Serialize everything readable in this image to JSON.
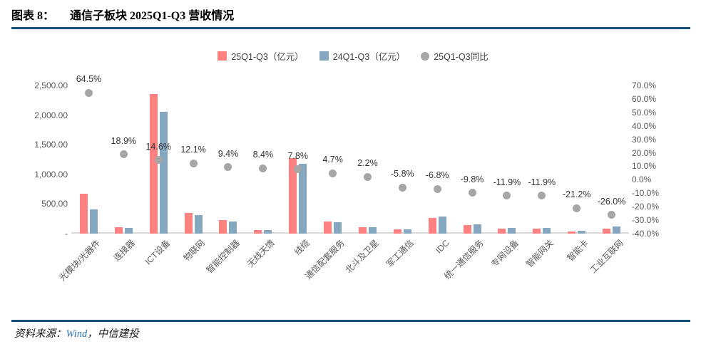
{
  "header": {
    "chart_label": "图表 8：",
    "title": "通信子板块 2025Q1-Q3 营收情况"
  },
  "footer": {
    "source_prefix": "资料来源：",
    "source_wind": "Wind",
    "source_rest": "，中信建投"
  },
  "colors": {
    "bar_2025": "#FD8181",
    "bar_2024": "#85A7C0",
    "dot": "#A6A6A6",
    "rule": "#134F7D",
    "axis_text": "#595959",
    "baseline": "#D9D9D9",
    "wind_blue": "#2E75B6",
    "data_label": "#333333"
  },
  "legend": [
    {
      "label": "25Q1-Q3（亿元）",
      "marker": "square",
      "color_key": "bar_2025"
    },
    {
      "label": "24Q1-Q3（亿元）",
      "marker": "square",
      "color_key": "bar_2024"
    },
    {
      "label": "25Q1-Q3同比",
      "marker": "circle",
      "color_key": "dot"
    }
  ],
  "chart_data": {
    "type": "bar",
    "subtype": "grouped-bars-with-scatter-overlay",
    "title": "通信子板块 2025Q1-Q3 营收情况",
    "grid": false,
    "legend_position": "top-center",
    "categories": [
      "光模块/光器件",
      "连接器",
      "ICT设备",
      "物联网",
      "智能控制器",
      "无线天馈",
      "线缆",
      "通信配套服务",
      "北斗及卫星",
      "军工通信",
      "IDC",
      "统一通信服务",
      "专网设备",
      "智能网关",
      "智能卡",
      "工业互联网"
    ],
    "series": [
      {
        "name": "25Q1-Q3（亿元）",
        "type": "bar",
        "axis": "left",
        "values": [
          670,
          108,
          2350,
          350,
          230,
          60,
          1270,
          200,
          108,
          73,
          265,
          145,
          85,
          88,
          37,
          90
        ]
      },
      {
        "name": "24Q1-Q3（亿元）",
        "type": "bar",
        "axis": "left",
        "values": [
          407,
          91,
          2050,
          312,
          210,
          55,
          1178,
          191,
          106,
          78,
          284,
          161,
          97,
          100,
          47,
          122
        ]
      },
      {
        "name": "25Q1-Q3同比",
        "type": "scatter",
        "axis": "right",
        "values": [
          64.5,
          18.9,
          14.6,
          12.1,
          9.4,
          8.4,
          7.8,
          4.7,
          2.2,
          -5.8,
          -6.8,
          -9.8,
          -11.9,
          -11.9,
          -21.2,
          -26.0
        ],
        "labels": [
          "64.5%",
          "18.9%",
          "14.6%",
          "12.1%",
          "9.4%",
          "8.4%",
          "7.8%",
          "4.7%",
          "2.2%",
          "-5.8%",
          "-6.8%",
          "-9.8%",
          "-11.9%",
          "-11.9%",
          "-21.2%",
          "-26.0%"
        ]
      }
    ],
    "left_axis": {
      "min": 0,
      "max": 2500,
      "tick_values": [
        2500,
        2000,
        1500,
        1000,
        500,
        0
      ],
      "tick_labels": [
        "2,500.00",
        "2,000.00",
        "1,500.00",
        "1,000.00",
        "500.00",
        "-"
      ]
    },
    "right_axis": {
      "min": -40,
      "max": 70,
      "tick_values": [
        70,
        60,
        50,
        40,
        30,
        20,
        10,
        0,
        -10,
        -20,
        -30,
        -40
      ],
      "tick_labels": [
        "70.0%",
        "60.0%",
        "50.0%",
        "40.0%",
        "30.0%",
        "20.0%",
        "10.0%",
        "0.0%",
        "-10.0%",
        "-20.0%",
        "-30.0%",
        "-40.0%"
      ]
    }
  }
}
